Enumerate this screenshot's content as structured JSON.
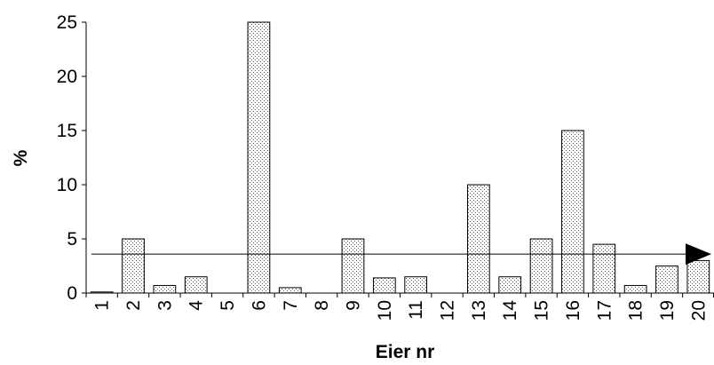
{
  "chart_data": {
    "type": "bar",
    "xlabel": "Eier nr",
    "ylabel": "%",
    "categories": [
      "1",
      "2",
      "3",
      "4",
      "5",
      "6",
      "7",
      "8",
      "9",
      "10",
      "11",
      "12",
      "13",
      "14",
      "15",
      "16",
      "17",
      "18",
      "19",
      "20"
    ],
    "values": [
      0.1,
      5,
      0.7,
      1.5,
      0,
      25,
      0.5,
      0,
      5,
      1.4,
      1.5,
      0,
      10,
      1.5,
      5,
      15,
      4.5,
      0.7,
      2.5,
      3
    ],
    "ylim": [
      0,
      25
    ],
    "yticks": [
      0,
      5,
      10,
      15,
      20,
      25
    ],
    "reference_line": {
      "value": 3.6,
      "arrow": "right"
    },
    "grid": false,
    "bar_fill": "dotted-pattern",
    "colors": {
      "bar_stroke": "#000000",
      "dots": "#555555",
      "axis": "#000000"
    }
  }
}
